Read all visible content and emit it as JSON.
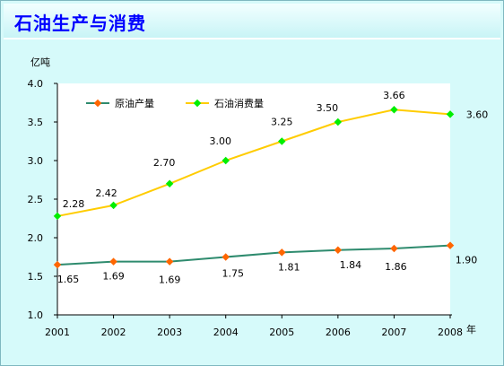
{
  "title": "石油生产与消费",
  "chart_data": {
    "type": "line",
    "ylabel": "亿吨",
    "xlabel": "年",
    "ylim": [
      1.0,
      4.0
    ],
    "yticks": [
      "1.0",
      "1.5",
      "2.0",
      "2.5",
      "3.0",
      "3.5",
      "4.0"
    ],
    "categories": [
      "2001",
      "2002",
      "2003",
      "2004",
      "2005",
      "2006",
      "2007",
      "2008"
    ],
    "series": [
      {
        "name": "原油产量",
        "color": "#2e8b6e",
        "marker_color": "#ff6600",
        "values": [
          1.65,
          1.69,
          1.69,
          1.75,
          1.81,
          1.84,
          1.86,
          1.9
        ],
        "labels": [
          "1.65",
          "1.69",
          "1.69",
          "1.75",
          "1.81",
          "1.84",
          "1.86",
          "1.90"
        ]
      },
      {
        "name": "石油消费量",
        "color": "#ffcc00",
        "marker_color": "#00ee00",
        "values": [
          2.28,
          2.42,
          2.7,
          3.0,
          3.25,
          3.5,
          3.66,
          3.6
        ],
        "labels": [
          "2.28",
          "2.42",
          "2.70",
          "3.00",
          "3.25",
          "3.50",
          "3.66",
          "3.60"
        ]
      }
    ],
    "grid": false,
    "legend": "top-left"
  }
}
